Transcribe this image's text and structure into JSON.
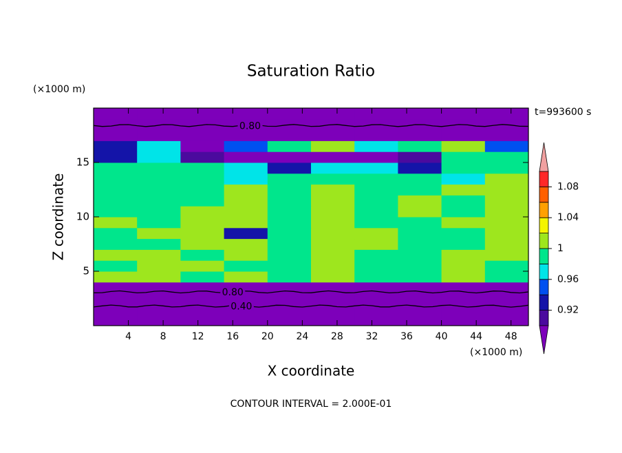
{
  "chart_data": {
    "type": "contour",
    "title": "Saturation Ratio",
    "xlabel": "X coordinate",
    "ylabel": "Z coordinate",
    "x_unit": "(×1000 m)",
    "y_unit": "(×1000 m)",
    "time_label": "t=993600 s",
    "footer": "CONTOUR INTERVAL = 2.000E-01",
    "xlim": [
      0,
      50
    ],
    "ylim": [
      0,
      20
    ],
    "xticks": [
      4,
      8,
      12,
      16,
      20,
      24,
      28,
      32,
      36,
      40,
      44,
      48
    ],
    "yticks": [
      5,
      10,
      15
    ],
    "clim": [
      0.9,
      1.1
    ],
    "cticks": [
      0.92,
      0.96,
      1,
      1.04,
      1.08
    ],
    "colors": [
      "#4b0a9e",
      "#1414a8",
      "#0050f0",
      "#00e4e8",
      "#00e68c",
      "#9ee61e",
      "#f5f500",
      "#ffa000",
      "#ff6000",
      "#ff2828"
    ],
    "under_color": "#7d00ba",
    "over_color": "#f0a0a0",
    "contour_labels": [
      {
        "value": 0.8,
        "label": "0.80"
      },
      {
        "value": 0.8,
        "label": "0.80"
      },
      {
        "value": 0.4,
        "label": "0.40"
      }
    ],
    "z": [
      [
        0.4,
        0.4,
        0.4,
        0.4,
        0.4,
        0.4,
        0.4,
        0.4,
        0.4,
        0.4
      ],
      [
        0.5,
        0.5,
        0.5,
        0.5,
        0.5,
        0.5,
        0.5,
        0.5,
        0.5,
        0.5
      ],
      [
        0.7,
        0.7,
        0.7,
        0.7,
        0.7,
        0.7,
        0.7,
        0.7,
        0.7,
        0.7
      ],
      [
        0.85,
        0.85,
        0.85,
        0.85,
        0.85,
        0.85,
        0.85,
        0.85,
        0.85,
        0.85
      ],
      [
        1.01,
        1.01,
        0.99,
        1.01,
        0.99,
        1.01,
        0.99,
        0.99,
        1.01,
        0.99
      ],
      [
        0.99,
        1.01,
        1.01,
        0.99,
        0.99,
        1.01,
        0.99,
        0.99,
        1.01,
        0.99
      ],
      [
        1.01,
        1.01,
        0.99,
        1.01,
        0.99,
        1.01,
        0.99,
        0.99,
        1.01,
        1.01
      ],
      [
        0.99,
        0.99,
        1.01,
        1.01,
        0.99,
        1.01,
        1.01,
        0.99,
        0.99,
        1.01
      ],
      [
        0.99,
        1.01,
        1.01,
        0.93,
        0.99,
        1.01,
        1.01,
        0.99,
        0.99,
        1.01
      ],
      [
        1.01,
        0.99,
        1.01,
        1.01,
        0.99,
        1.01,
        0.99,
        0.99,
        1.01,
        1.01
      ],
      [
        0.99,
        0.99,
        1.01,
        1.01,
        0.99,
        1.01,
        0.99,
        1.01,
        0.99,
        1.01
      ],
      [
        0.99,
        0.99,
        0.99,
        1.01,
        0.99,
        1.01,
        0.99,
        1.01,
        0.99,
        1.01
      ],
      [
        0.99,
        0.99,
        0.99,
        1.01,
        0.99,
        1.01,
        0.99,
        0.99,
        1.01,
        1.01
      ],
      [
        0.99,
        0.99,
        0.99,
        0.97,
        0.99,
        0.99,
        0.99,
        0.99,
        0.97,
        1.01
      ],
      [
        0.99,
        0.99,
        0.99,
        0.97,
        0.93,
        0.97,
        0.97,
        0.93,
        0.99,
        0.99
      ],
      [
        0.93,
        0.97,
        0.91,
        0.85,
        0.85,
        0.85,
        0.85,
        0.91,
        0.99,
        0.99
      ],
      [
        0.93,
        0.97,
        0.85,
        0.95,
        0.99,
        1.01,
        0.97,
        0.99,
        1.01,
        0.95
      ],
      [
        0.85,
        0.85,
        0.85,
        0.85,
        0.85,
        0.85,
        0.85,
        0.85,
        0.85,
        0.85
      ],
      [
        0.8,
        0.8,
        0.8,
        0.8,
        0.8,
        0.8,
        0.8,
        0.8,
        0.8,
        0.8
      ],
      [
        0.75,
        0.75,
        0.75,
        0.75,
        0.75,
        0.75,
        0.75,
        0.75,
        0.75,
        0.75
      ]
    ]
  }
}
